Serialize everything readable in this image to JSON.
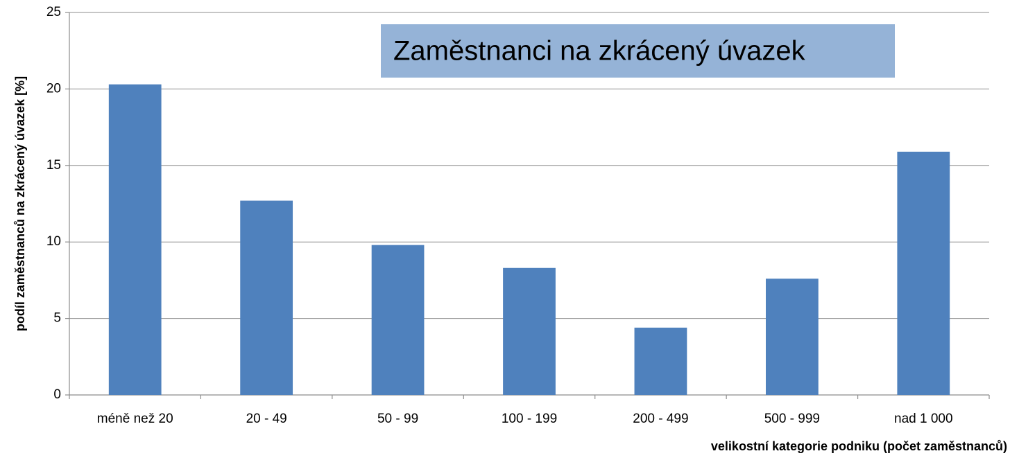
{
  "chart_data": {
    "type": "bar",
    "title": "Zaměstnanci na zkrácený úvazek",
    "categories": [
      "méně než 20",
      "20 - 49",
      "50 - 99",
      "100 - 199",
      "200 - 499",
      "500 - 999",
      "nad 1 000"
    ],
    "values": [
      20.3,
      12.7,
      9.8,
      8.3,
      4.4,
      7.6,
      15.9
    ],
    "color": "#4f81bd",
    "ylim": [
      0,
      25
    ],
    "yticks": [
      0,
      5,
      10,
      15,
      20,
      25
    ],
    "grid": true,
    "xlabel": "velikostní kategorie podniku (počet zaměstnanců)",
    "ylabel": "podíl zaměstnanců na zkrácený úvazek [%]"
  }
}
